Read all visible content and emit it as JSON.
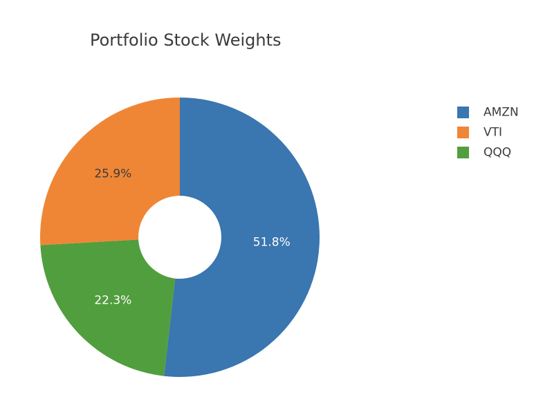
{
  "chart_data": {
    "type": "pie",
    "title": "Portfolio Stock Weights",
    "hole": true,
    "slices": [
      {
        "label": "AMZN",
        "value": 51.8,
        "display": "51.8%",
        "color": "#3a76af",
        "label_color": "#ffffff"
      },
      {
        "label": "QQQ",
        "value": 22.3,
        "display": "22.3%",
        "color": "#519e3e",
        "label_color": "#ffffff"
      },
      {
        "label": "VTI",
        "value": 25.9,
        "display": "25.9%",
        "color": "#ef8636",
        "label_color": "#3b3b3b"
      }
    ],
    "legend": {
      "position": "right",
      "order": [
        "AMZN",
        "VTI",
        "QQQ"
      ]
    },
    "colors": {
      "AMZN": "#3a76af",
      "VTI": "#ef8636",
      "QQQ": "#519e3e"
    }
  }
}
